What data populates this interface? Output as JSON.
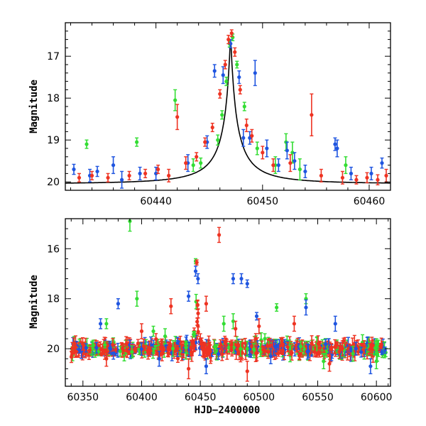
{
  "series_colors": {
    "green": "#33dd33",
    "blue": "#1f55e0",
    "red": "#ee3322",
    "model": "#000000"
  },
  "chart_data": [
    {
      "type": "scatter",
      "title": "",
      "xlabel": "",
      "ylabel": "Magnitude",
      "xlim": [
        60431.5,
        60462
      ],
      "ylim": [
        20.2,
        16.2
      ],
      "y_inverted": true,
      "x_ticks": [
        60440,
        60450,
        60460
      ],
      "y_ticks": [
        17,
        18,
        19,
        20
      ],
      "model_curve": {
        "t0": 60447,
        "peak_mag": 16.45,
        "baseline_mag": 20.05,
        "tE": 4.2
      },
      "series": [
        {
          "color_key": "green",
          "points": [
            [
              60433.5,
              19.1,
              0.1
            ],
            [
              60438.2,
              19.05,
              0.1
            ],
            [
              60441.8,
              18.05,
              0.25
            ],
            [
              60443.5,
              19.6,
              0.15
            ],
            [
              60444.2,
              19.55,
              0.12
            ],
            [
              60445.8,
              19.0,
              0.12
            ],
            [
              60446.2,
              18.4,
              0.1
            ],
            [
              60446.6,
              17.6,
              0.1
            ],
            [
              60446.9,
              16.7,
              0.08
            ],
            [
              60447.2,
              16.55,
              0.08
            ],
            [
              60447.6,
              17.2,
              0.08
            ],
            [
              60448.3,
              18.2,
              0.1
            ],
            [
              60449.5,
              19.2,
              0.15
            ],
            [
              60451.2,
              19.6,
              0.2
            ],
            [
              60452.2,
              19.05,
              0.2
            ],
            [
              60452.8,
              19.3,
              0.25
            ],
            [
              60453.5,
              19.7,
              0.25
            ],
            [
              60457.8,
              19.6,
              0.2
            ]
          ]
        },
        {
          "color_key": "blue",
          "points": [
            [
              60432.3,
              19.7,
              0.12
            ],
            [
              60433.8,
              19.85,
              0.15
            ],
            [
              60434.5,
              19.75,
              0.12
            ],
            [
              60436.0,
              19.6,
              0.2
            ],
            [
              60436.8,
              19.95,
              0.2
            ],
            [
              60438.5,
              19.8,
              0.15
            ],
            [
              60440.0,
              19.8,
              0.15
            ],
            [
              60443.0,
              19.55,
              0.2
            ],
            [
              60444.8,
              19.05,
              0.15
            ],
            [
              60445.5,
              17.35,
              0.15
            ],
            [
              60446.3,
              17.45,
              0.2
            ],
            [
              60447.0,
              16.7,
              0.1
            ],
            [
              60447.8,
              17.5,
              0.15
            ],
            [
              60448.2,
              18.95,
              0.2
            ],
            [
              60448.8,
              18.95,
              0.15
            ],
            [
              60449.3,
              17.4,
              0.3
            ],
            [
              60450.4,
              19.2,
              0.2
            ],
            [
              60451.5,
              19.6,
              0.15
            ],
            [
              60452.3,
              19.25,
              0.2
            ],
            [
              60453.0,
              19.5,
              0.2
            ],
            [
              60454.0,
              19.75,
              0.15
            ],
            [
              60456.8,
              19.1,
              0.15
            ],
            [
              60457.0,
              19.2,
              0.2
            ],
            [
              60458.3,
              19.8,
              0.15
            ],
            [
              60460.2,
              19.8,
              0.15
            ],
            [
              60461.2,
              19.55,
              0.12
            ]
          ]
        },
        {
          "color_key": "red",
          "points": [
            [
              60432.8,
              19.9,
              0.1
            ],
            [
              60434.0,
              19.85,
              0.1
            ],
            [
              60435.5,
              19.9,
              0.1
            ],
            [
              60437.5,
              19.85,
              0.1
            ],
            [
              60439.0,
              19.8,
              0.1
            ],
            [
              60440.2,
              19.7,
              0.1
            ],
            [
              60441.2,
              19.85,
              0.15
            ],
            [
              60442.0,
              18.45,
              0.3
            ],
            [
              60442.8,
              19.55,
              0.15
            ],
            [
              60443.8,
              19.4,
              0.1
            ],
            [
              60444.6,
              19.05,
              0.1
            ],
            [
              60445.3,
              18.7,
              0.1
            ],
            [
              60446.0,
              17.9,
              0.1
            ],
            [
              60446.5,
              17.2,
              0.1
            ],
            [
              60446.8,
              16.6,
              0.1
            ],
            [
              60447.1,
              16.45,
              0.08
            ],
            [
              60447.4,
              16.9,
              0.1
            ],
            [
              60447.9,
              17.8,
              0.1
            ],
            [
              60448.5,
              18.65,
              0.15
            ],
            [
              60449.0,
              18.9,
              0.15
            ],
            [
              60450.0,
              19.3,
              0.15
            ],
            [
              60451.0,
              19.6,
              0.15
            ],
            [
              60452.6,
              19.55,
              0.2
            ],
            [
              60454.6,
              18.4,
              0.5
            ],
            [
              60455.5,
              19.85,
              0.15
            ],
            [
              60457.5,
              19.9,
              0.15
            ],
            [
              60458.8,
              19.95,
              0.1
            ],
            [
              60459.8,
              19.9,
              0.12
            ],
            [
              60460.8,
              19.95,
              0.12
            ],
            [
              60461.6,
              19.85,
              0.15
            ]
          ]
        }
      ]
    },
    {
      "type": "scatter",
      "title": "",
      "xlabel": "HJD−2400000",
      "ylabel": "Magnitude",
      "xlim": [
        60335,
        60612
      ],
      "ylim": [
        21.5,
        14.8
      ],
      "y_inverted": true,
      "x_ticks": [
        60350,
        60400,
        60450,
        60500,
        60550,
        60600
      ],
      "y_ticks": [
        16,
        18,
        20
      ],
      "peak": {
        "t0": 60447,
        "peak_mag": 16.45,
        "baseline_mag": 20.0
      },
      "series": [
        {
          "color_key": "green",
          "points": [
            [
              60390,
              14.9,
              0.4
            ],
            [
              60396,
              18.0,
              0.3
            ],
            [
              60446,
              16.5,
              0.1
            ],
            [
              60478,
              18.9,
              0.3
            ],
            [
              60490,
              20.0,
              0.3
            ],
            [
              60515,
              18.35,
              0.15
            ],
            [
              60540,
              18.0,
              0.2
            ],
            [
              60470,
              19.0,
              0.3
            ],
            [
              60370,
              19.0,
              0.2
            ],
            [
              60410,
              19.3,
              0.2
            ],
            [
              60555,
              20.5,
              0.3
            ],
            [
              60600,
              20.5,
              0.3
            ],
            [
              60420,
              19.5,
              0.3
            ],
            [
              60505,
              19.6,
              0.2
            ],
            [
              60580,
              20.2,
              0.3
            ]
          ]
        },
        {
          "color_key": "blue",
          "points": [
            [
              60380,
              18.2,
              0.2
            ],
            [
              60440,
              17.9,
              0.2
            ],
            [
              60446,
              16.9,
              0.2
            ],
            [
              60448,
              17.2,
              0.2
            ],
            [
              60478,
              17.2,
              0.2
            ],
            [
              60485,
              17.2,
              0.2
            ],
            [
              60490,
              17.4,
              0.15
            ],
            [
              60498,
              18.7,
              0.15
            ],
            [
              60540,
              18.35,
              0.3
            ],
            [
              60565,
              19.0,
              0.3
            ],
            [
              60415,
              20.4,
              0.3
            ],
            [
              60455,
              20.7,
              0.3
            ],
            [
              60510,
              20.3,
              0.3
            ],
            [
              60595,
              20.7,
              0.3
            ],
            [
              60365,
              19.0,
              0.2
            ]
          ]
        },
        {
          "color_key": "red",
          "points": [
            [
              60425,
              18.3,
              0.3
            ],
            [
              60447,
              16.55,
              0.1
            ],
            [
              60466,
              15.45,
              0.3
            ],
            [
              60480,
              19.2,
              0.3
            ],
            [
              60455,
              18.2,
              0.3
            ],
            [
              60500,
              19.1,
              0.3
            ],
            [
              60530,
              19.0,
              0.3
            ],
            [
              60400,
              19.3,
              0.3
            ],
            [
              60490,
              20.9,
              0.4
            ],
            [
              60560,
              20.6,
              0.3
            ],
            [
              60440,
              20.8,
              0.4
            ],
            [
              60370,
              20.4,
              0.3
            ]
          ]
        }
      ],
      "dense_baseline": {
        "xmin": 60340,
        "xmax": 60608,
        "mag": 20.0
      }
    }
  ]
}
